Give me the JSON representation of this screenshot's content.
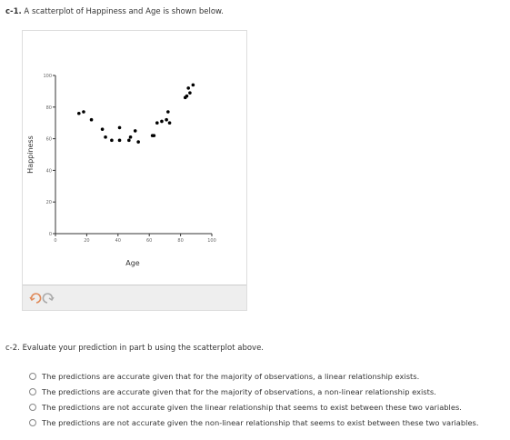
{
  "part1": {
    "label": "c-1.",
    "text": "A scatterplot of Happiness and Age is shown below."
  },
  "chart_data": {
    "type": "scatter",
    "xlabel": "Age",
    "ylabel": "Happiness",
    "color": "#000000",
    "x": [
      15,
      18,
      23,
      30,
      32,
      36,
      41,
      41,
      47,
      48,
      51,
      53,
      62,
      63,
      65,
      68,
      71,
      72,
      73,
      83,
      84,
      85,
      86,
      88
    ],
    "values": [
      76,
      77,
      72,
      66,
      61,
      59,
      67,
      59,
      59,
      61,
      65,
      58,
      62,
      62,
      70,
      71,
      72,
      77,
      70,
      86,
      87,
      92,
      89,
      94
    ],
    "xlim": [
      0,
      100
    ],
    "ylim": [
      0,
      100
    ],
    "xticks": [
      0,
      20,
      40,
      60,
      80,
      100
    ],
    "yticks": [
      0,
      20,
      40,
      60,
      80,
      100
    ]
  },
  "part2": {
    "label": "c-2.",
    "text": "Evaluate your prediction in part b using the scatterplot above.",
    "options": [
      "The predictions are accurate given that for the majority of observations, a linear relationship exists.",
      "The predictions are accurate given that for the majority of observations, a non-linear relationship exists.",
      "The predictions are not accurate given the linear relationship that seems to exist between these two variables.",
      "The predictions are not accurate given the non-linear relationship that seems to exist between these two variables."
    ]
  }
}
